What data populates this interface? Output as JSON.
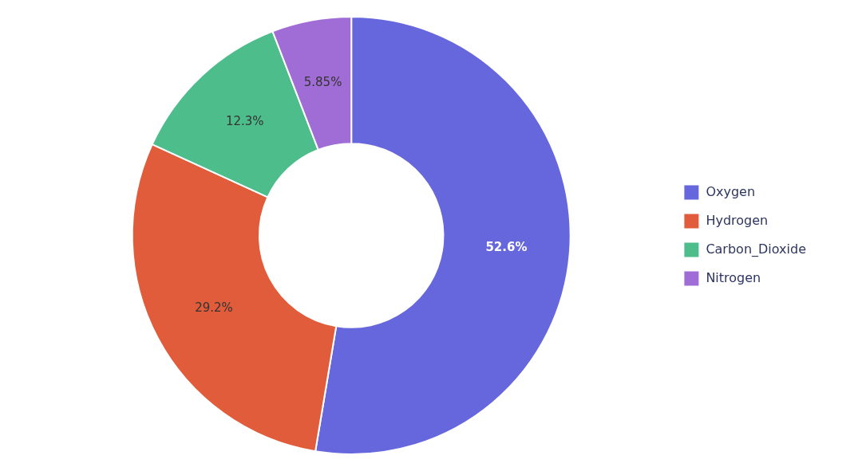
{
  "chart_data": {
    "type": "doughnut",
    "categories": [
      "Oxygen",
      "Hydrogen",
      "Carbon_Dioxide",
      "Nitrogen"
    ],
    "values": [
      52.6,
      29.2,
      12.3,
      5.85
    ],
    "value_labels": [
      "52.6%",
      "29.2%",
      "12.3%",
      "5.85%"
    ],
    "colors": [
      "#6666DD",
      "#E05C3A",
      "#4DBD8B",
      "#A06CD5"
    ],
    "data_labels": true,
    "legend": "right"
  }
}
